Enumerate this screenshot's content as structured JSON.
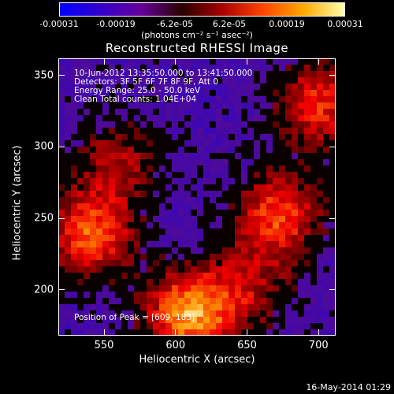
{
  "colorbar": {
    "ticks": [
      "-0.00031",
      "-0.00019",
      "-6.2e-05",
      "6.2e-05",
      "0.00019",
      "0.00031"
    ],
    "units_text": "(photons cm⁻² s⁻¹ asec⁻²)",
    "colors": [
      "#0000ff",
      "#3300cc",
      "#660099",
      "#2a0000",
      "#aa0000",
      "#ff4400",
      "#ffaa00",
      "#ffffaa"
    ]
  },
  "annotations": {
    "time_range": "10-Jun-2012 13:35:50.000 to 13:41:50.000",
    "detectors": "Detectors: 3F 5F 6F 7F 8F 9F, Att 0",
    "energy": "Energy Range: 25.0 - 50.0 keV",
    "clean": "Clean     Total counts: 1.04E+04",
    "peak": "Position of Peak = [609, 183]"
  },
  "footer": {
    "timestamp": "16-May-2014 01:29"
  },
  "chart_data": {
    "type": "heatmap",
    "title": "Reconstructed RHESSI Image",
    "xlabel": "Heliocentric X (arcsec)",
    "ylabel": "Heliocentric Y (arcsec)",
    "xlim": [
      518,
      712
    ],
    "ylim": [
      168,
      362
    ],
    "xticks": [
      550,
      600,
      650,
      700
    ],
    "yticks": [
      200,
      250,
      300,
      350
    ],
    "zlim": [
      -0.00031,
      0.00031
    ],
    "sources": [
      {
        "x": 609,
        "y": 183,
        "peak": 0.00031
      },
      {
        "x": 540,
        "y": 238,
        "peak": 0.00026
      },
      {
        "x": 672,
        "y": 252,
        "peak": 0.00024
      },
      {
        "x": 700,
        "y": 330,
        "peak": 0.00022
      },
      {
        "x": 560,
        "y": 290,
        "peak": 0.00015
      },
      {
        "x": 650,
        "y": 200,
        "peak": 0.00014
      }
    ],
    "colors": {
      "negative": "#4400aa",
      "positive": "#ff6600"
    }
  }
}
